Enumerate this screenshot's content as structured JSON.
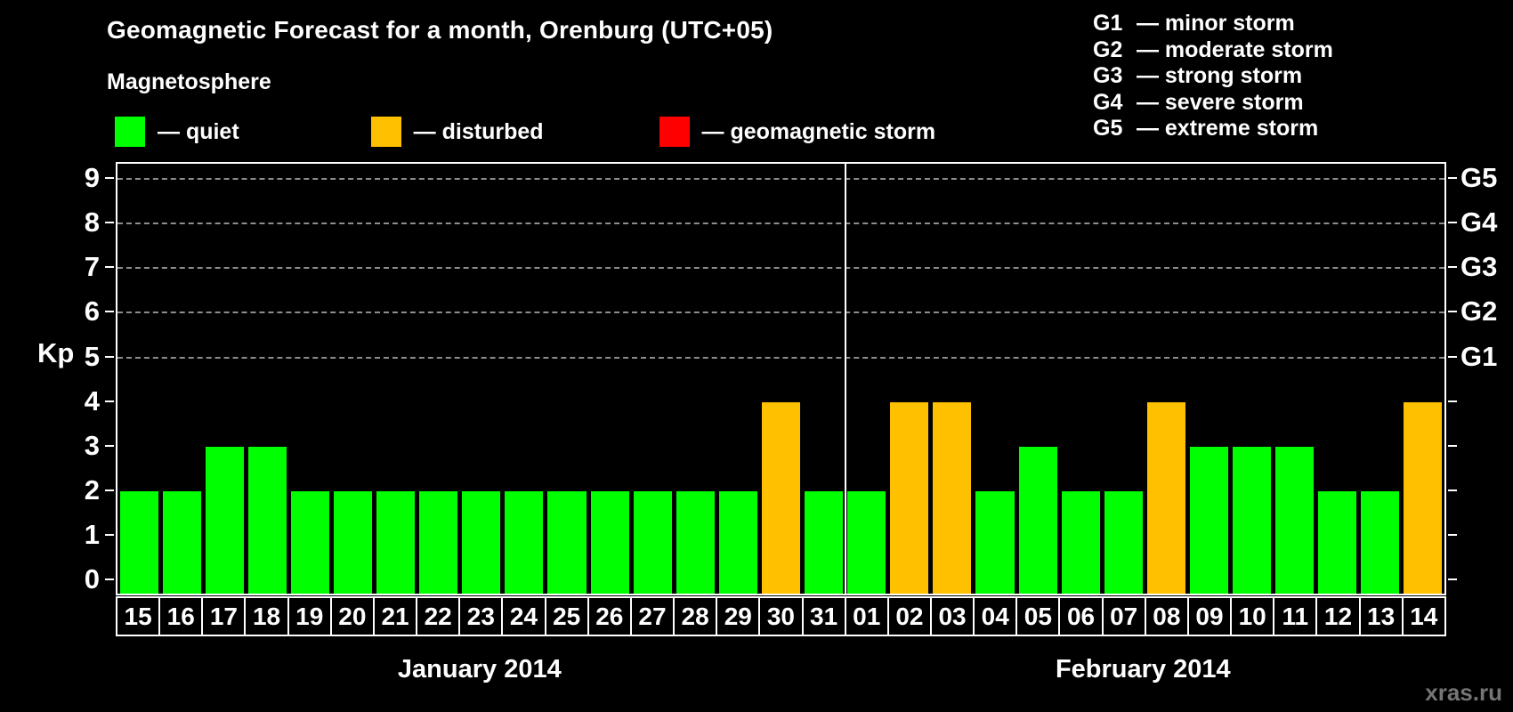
{
  "title": "Geomagnetic Forecast for a month, Orenburg (UTC+05)",
  "magnetosphere_label": "Magnetosphere",
  "legend": [
    {
      "name": "quiet",
      "label": "— quiet",
      "color": "#00FF00"
    },
    {
      "name": "disturbed",
      "label": "— disturbed",
      "color": "#FFC000"
    },
    {
      "name": "geomagnetic-storm",
      "label": "— geomagnetic storm",
      "color": "#FF0000"
    }
  ],
  "g_legend": [
    {
      "code": "G1",
      "label": "— minor storm"
    },
    {
      "code": "G2",
      "label": "— moderate storm"
    },
    {
      "code": "G3",
      "label": "— strong storm"
    },
    {
      "code": "G4",
      "label": "— severe storm"
    },
    {
      "code": "G5",
      "label": "— extreme storm"
    }
  ],
  "watermark": "xras.ru",
  "colors": {
    "quiet": "#00FF00",
    "disturbed": "#FFC000",
    "storm": "#FF0000",
    "gridline": "#8d8d8d",
    "axis": "#ffffff",
    "background": "#000000"
  },
  "chart_data": {
    "type": "bar",
    "title": "Geomagnetic Forecast for a month, Orenburg (UTC+05)",
    "xlabel": "",
    "ylabel": "Kp",
    "ylim": [
      0,
      9
    ],
    "yticks": [
      0,
      1,
      2,
      3,
      4,
      5,
      6,
      7,
      8,
      9
    ],
    "grid": "dashed horizontal lines at Kp 5-9",
    "legend_position": "top",
    "right_axis_labels": [
      {
        "kp": 5,
        "label": "G1"
      },
      {
        "kp": 6,
        "label": "G2"
      },
      {
        "kp": 7,
        "label": "G3"
      },
      {
        "kp": 8,
        "label": "G4"
      },
      {
        "kp": 9,
        "label": "G5"
      }
    ],
    "months": [
      {
        "label": "January 2014",
        "days": [
          {
            "day": "15",
            "kp": 2,
            "status": "quiet"
          },
          {
            "day": "16",
            "kp": 2,
            "status": "quiet"
          },
          {
            "day": "17",
            "kp": 3,
            "status": "quiet"
          },
          {
            "day": "18",
            "kp": 3,
            "status": "quiet"
          },
          {
            "day": "19",
            "kp": 2,
            "status": "quiet"
          },
          {
            "day": "20",
            "kp": 2,
            "status": "quiet"
          },
          {
            "day": "21",
            "kp": 2,
            "status": "quiet"
          },
          {
            "day": "22",
            "kp": 2,
            "status": "quiet"
          },
          {
            "day": "23",
            "kp": 2,
            "status": "quiet"
          },
          {
            "day": "24",
            "kp": 2,
            "status": "quiet"
          },
          {
            "day": "25",
            "kp": 2,
            "status": "quiet"
          },
          {
            "day": "26",
            "kp": 2,
            "status": "quiet"
          },
          {
            "day": "27",
            "kp": 2,
            "status": "quiet"
          },
          {
            "day": "28",
            "kp": 2,
            "status": "quiet"
          },
          {
            "day": "29",
            "kp": 2,
            "status": "quiet"
          },
          {
            "day": "30",
            "kp": 4,
            "status": "disturbed"
          },
          {
            "day": "31",
            "kp": 2,
            "status": "quiet"
          }
        ]
      },
      {
        "label": "February 2014",
        "days": [
          {
            "day": "01",
            "kp": 2,
            "status": "quiet"
          },
          {
            "day": "02",
            "kp": 4,
            "status": "disturbed"
          },
          {
            "day": "03",
            "kp": 4,
            "status": "disturbed"
          },
          {
            "day": "04",
            "kp": 2,
            "status": "quiet"
          },
          {
            "day": "05",
            "kp": 3,
            "status": "quiet"
          },
          {
            "day": "06",
            "kp": 2,
            "status": "quiet"
          },
          {
            "day": "07",
            "kp": 2,
            "status": "quiet"
          },
          {
            "day": "08",
            "kp": 4,
            "status": "disturbed"
          },
          {
            "day": "09",
            "kp": 3,
            "status": "quiet"
          },
          {
            "day": "10",
            "kp": 3,
            "status": "quiet"
          },
          {
            "day": "11",
            "kp": 3,
            "status": "quiet"
          },
          {
            "day": "12",
            "kp": 2,
            "status": "quiet"
          },
          {
            "day": "13",
            "kp": 2,
            "status": "quiet"
          },
          {
            "day": "14",
            "kp": 4,
            "status": "disturbed"
          }
        ]
      }
    ]
  }
}
